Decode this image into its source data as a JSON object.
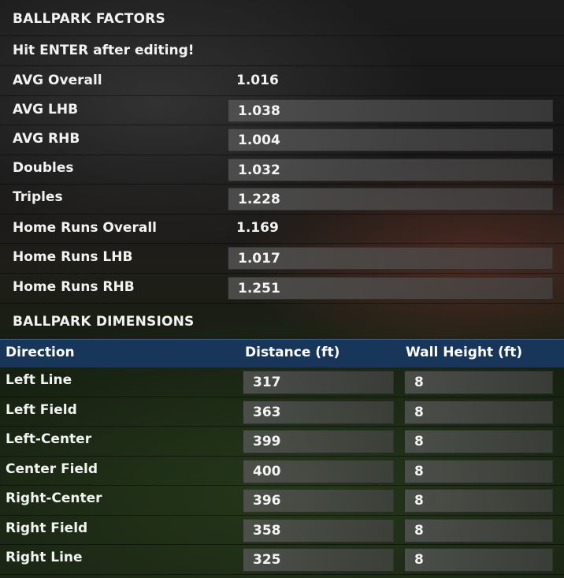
{
  "factors": {
    "title": "BALLPARK FACTORS",
    "hint": "Hit ENTER after editing!",
    "rows": [
      {
        "label": "AVG Overall",
        "value": "1.016",
        "editable": false
      },
      {
        "label": "AVG LHB",
        "value": "1.038",
        "editable": true
      },
      {
        "label": "AVG RHB",
        "value": "1.004",
        "editable": true
      },
      {
        "label": "Doubles",
        "value": "1.032",
        "editable": true
      },
      {
        "label": "Triples",
        "value": "1.228",
        "editable": true
      },
      {
        "label": "Home Runs Overall",
        "value": "1.169",
        "editable": false
      },
      {
        "label": "Home Runs LHB",
        "value": "1.017",
        "editable": true
      },
      {
        "label": "Home Runs RHB",
        "value": "1.251",
        "editable": true
      }
    ]
  },
  "dimensions": {
    "title": "BALLPARK DIMENSIONS",
    "columns": [
      "Direction",
      "Distance (ft)",
      "Wall Height (ft)"
    ],
    "rows": [
      {
        "direction": "Left Line",
        "distance": "317",
        "wall_height": "8"
      },
      {
        "direction": "Left Field",
        "distance": "363",
        "wall_height": "8"
      },
      {
        "direction": "Left-Center",
        "distance": "399",
        "wall_height": "8"
      },
      {
        "direction": "Center Field",
        "distance": "400",
        "wall_height": "8"
      },
      {
        "direction": "Right-Center",
        "distance": "396",
        "wall_height": "8"
      },
      {
        "direction": "Right Field",
        "distance": "358",
        "wall_height": "8"
      },
      {
        "direction": "Right Line",
        "distance": "325",
        "wall_height": "8"
      }
    ]
  },
  "colors": {
    "header_bar": "#173659",
    "field_bg": "#5a5a5a",
    "text": "#f2f2f2"
  }
}
